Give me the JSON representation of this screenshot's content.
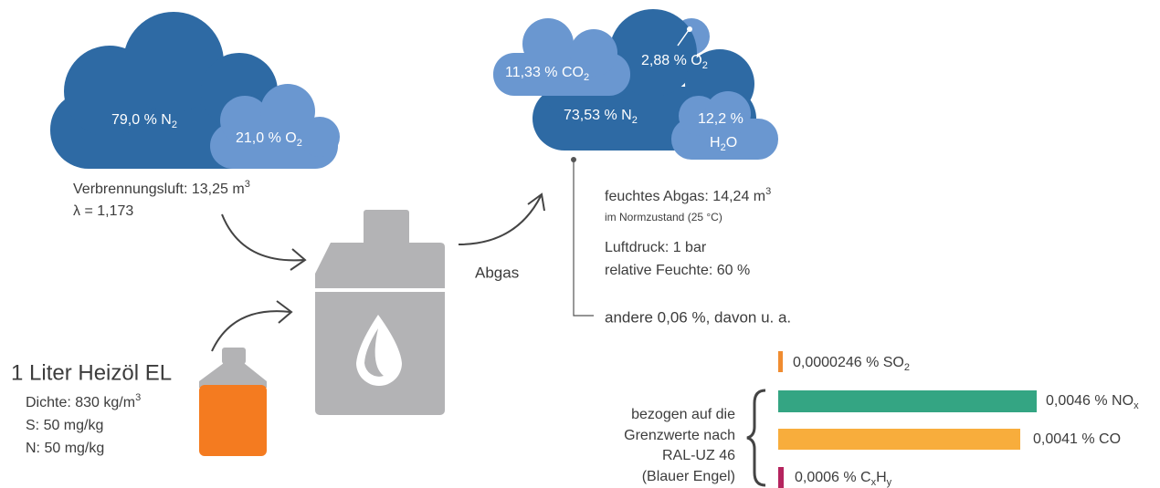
{
  "air_cloud": {
    "n2": {
      "text": "79,0 % N",
      "sub": "2"
    },
    "o2": {
      "text": "21,0 % O",
      "sub": "2"
    }
  },
  "air": {
    "volume": {
      "text": "Verbrennungsluft: 13,25 m",
      "sup": "3"
    },
    "lambda": "λ = 1,173"
  },
  "fuel": {
    "title": "1 Liter Heizöl EL",
    "density": {
      "text": "Dichte: 830 kg/m",
      "sup": "3"
    },
    "sulfur": "S: 50 mg/kg",
    "nitrogen": "N: 50 mg/kg"
  },
  "exhaust_label": "Abgas",
  "exhaust_cloud": {
    "co2": {
      "text": "11,33 % CO",
      "sub": "2"
    },
    "o2": {
      "text": "2,88 % O",
      "sub": "2"
    },
    "n2": {
      "text": "73,53 % N",
      "sub": "2"
    },
    "h2o": {
      "line1": "12,2 %",
      "text": "H",
      "sub": "2",
      "tail": "O"
    }
  },
  "exhaust": {
    "volume": {
      "text": "feuchtes Abgas: 14,24 m",
      "sup": "3"
    },
    "standard": "im Normzustand (25 °C)",
    "pressure": "Luftdruck: 1 bar",
    "humidity": "relative Feuchte: 60 %",
    "others": "andere 0,06 %, davon u. a."
  },
  "reference": [
    "bezogen auf die",
    "Grenzwerte nach",
    "RAL-UZ 46",
    "(Blauer Engel)"
  ],
  "emissions": [
    {
      "text": "0,0000246 % SO",
      "sub": "2"
    },
    {
      "text": "0,0046 % NO",
      "sub": "x"
    },
    {
      "text": "0,0041 % CO"
    },
    {
      "text": "0,0006 % C",
      "sub": "x",
      "text2": "H",
      "sub2": "y"
    }
  ]
}
